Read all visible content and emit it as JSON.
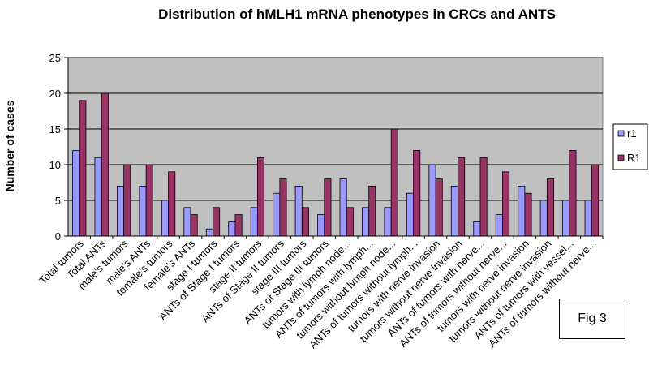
{
  "chart_data": {
    "type": "bar",
    "title": "Distribution of hMLH1 mRNA phenotypes  in CRCs and ANTS",
    "ylabel": "Number of cases",
    "xlabel": "",
    "ylim": [
      0,
      25
    ],
    "yticks": [
      0,
      5,
      10,
      15,
      20,
      25
    ],
    "grid": true,
    "legend_position": "right",
    "categories": [
      "Total tumors",
      "Total ANTs",
      "male's tumors",
      "male's ANTs",
      "female's tumors",
      "female's ANTs",
      "stage I tumors",
      "ANTs of Stage I tumors",
      "stage II tumors",
      "ANTs of Stage II tumors",
      "stage III tumors",
      "ANTs of Stage III tumors",
      "tumors with lymph node...",
      "ANTs of tumors with lymph...",
      "tumors without lymph node...",
      "ANTs of tumors without lymph...",
      "tumors with nerve invasion",
      "tumors without nerve invasion",
      "ANTs of tumors with nerve...",
      "ANTs of tumors without nerve...",
      "tumors with nerve invasion",
      "tumors without nerve invasion",
      "ANTs of tumors with vessel...",
      "ANTs of tumors without nerve..."
    ],
    "series": [
      {
        "name": "r1",
        "color": "#9999ff",
        "values": [
          12,
          11,
          7,
          7,
          5,
          4,
          1,
          2,
          4,
          6,
          7,
          3,
          8,
          4,
          4,
          6,
          10,
          7,
          2,
          3,
          7,
          5,
          5,
          5
        ]
      },
      {
        "name": "R1",
        "color": "#993366",
        "values": [
          19,
          20,
          10,
          10,
          9,
          3,
          4,
          3,
          11,
          8,
          4,
          8,
          4,
          7,
          15,
          12,
          8,
          11,
          11,
          9,
          6,
          8,
          12,
          10
        ]
      }
    ],
    "plot_background": "#c0c0c0",
    "figure_label": "Fig 3"
  }
}
